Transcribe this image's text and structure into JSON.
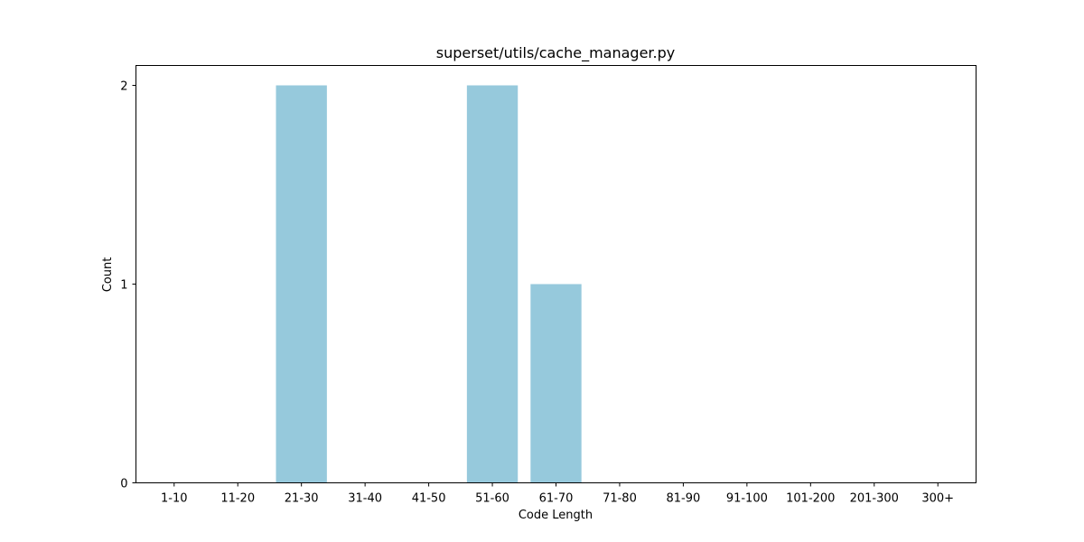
{
  "chart_data": {
    "type": "bar",
    "title": "superset/utils/cache_manager.py",
    "xlabel": "Code Length",
    "ylabel": "Count",
    "categories": [
      "1-10",
      "11-20",
      "21-30",
      "31-40",
      "41-50",
      "51-60",
      "61-70",
      "71-80",
      "81-90",
      "91-100",
      "101-200",
      "201-300",
      "300+"
    ],
    "values": [
      0,
      0,
      2,
      0,
      0,
      2,
      1,
      0,
      0,
      0,
      0,
      0,
      0
    ],
    "yticks": [
      0,
      1,
      2
    ],
    "ylim": [
      0,
      2.1
    ],
    "grid": false,
    "bar_color": "#96c9dc"
  }
}
